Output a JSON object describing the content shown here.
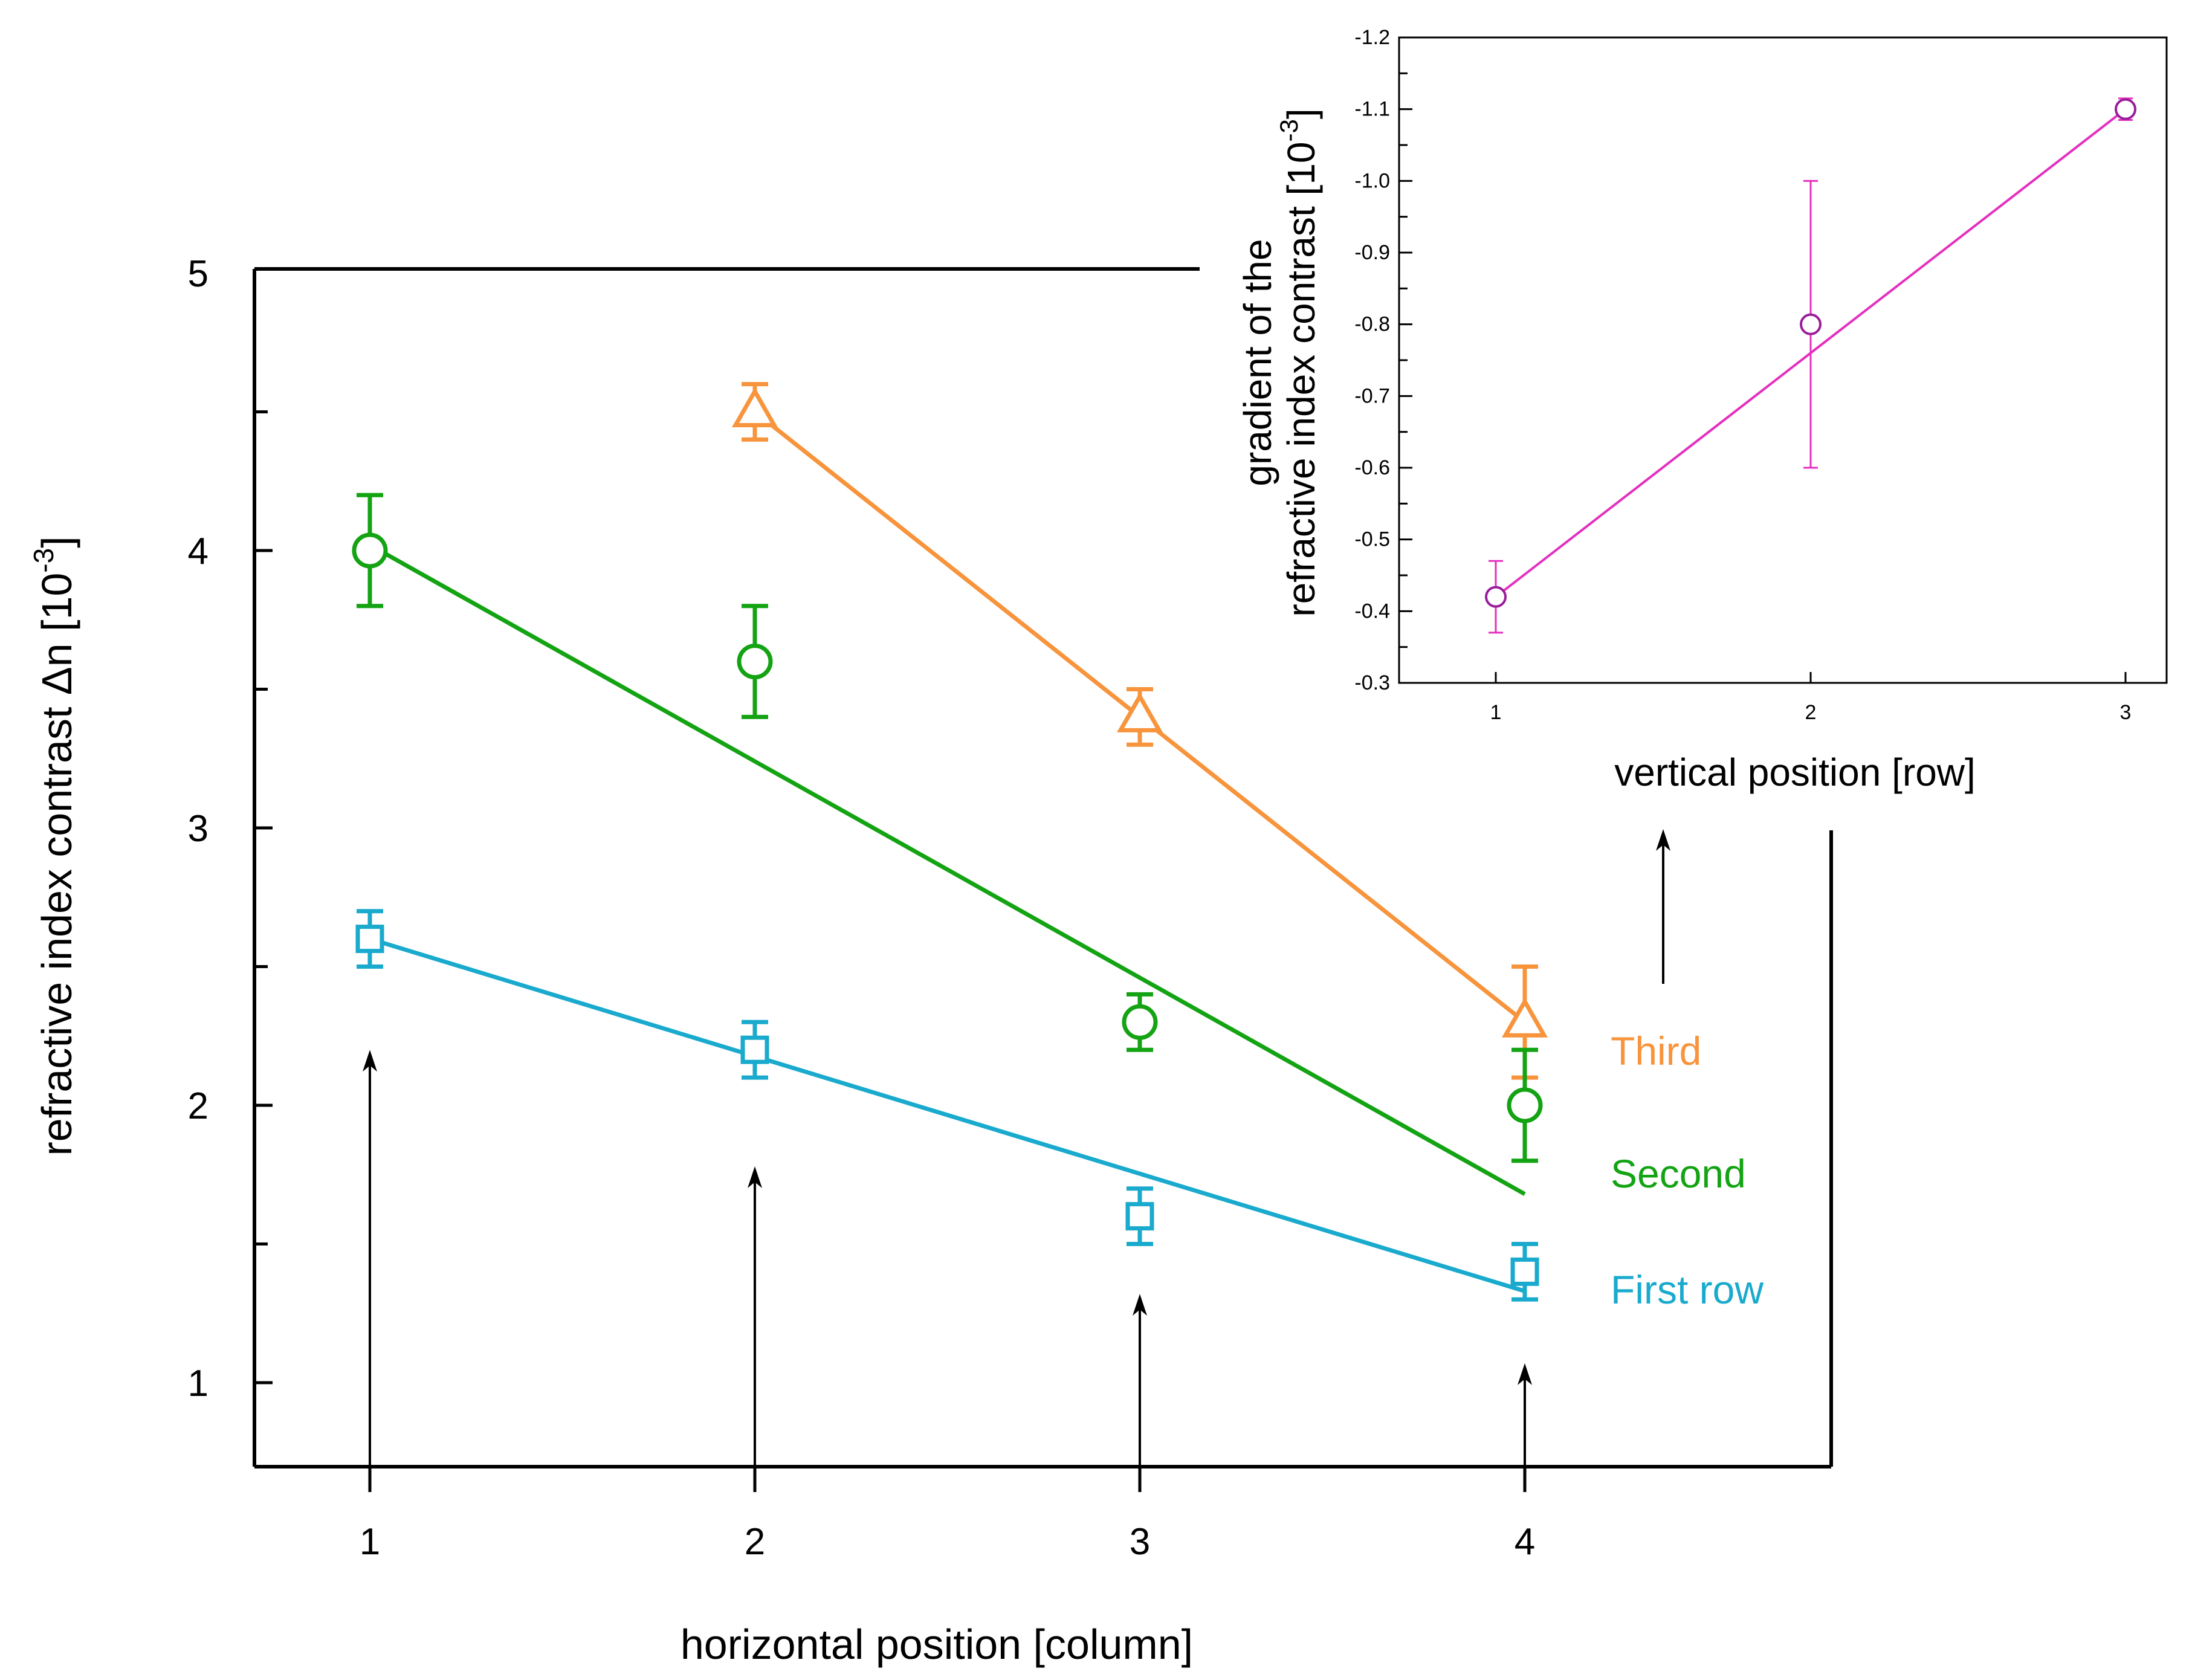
{
  "colors": {
    "third": "#F7943C",
    "second": "#13A313",
    "first": "#19AACD",
    "inset": "#E42FBF",
    "inset_marker": "#9A1C9A",
    "axis": "#000000"
  },
  "chart_data": [
    {
      "type": "scatter",
      "title": "",
      "xlabel": "horizontal position [column]",
      "ylabel_main": "refractive index contrast Δn [10",
      "ylabel_sup": "-3",
      "ylabel_end": "]",
      "xlim": [
        0.7,
        4.8
      ],
      "ylim": [
        0.7,
        5.0
      ],
      "xticks": [
        "1",
        "2",
        "3",
        "4"
      ],
      "yticks": [
        "1",
        "2",
        "3",
        "4",
        "5"
      ],
      "series": [
        {
          "name": "Third",
          "color_key": "third",
          "marker": "triangle",
          "x": [
            2,
            3,
            4
          ],
          "y": [
            4.5,
            3.4,
            2.3
          ],
          "err": [
            0.1,
            0.1,
            0.2
          ],
          "fit": {
            "x": [
              2,
              4
            ],
            "y": [
              4.5,
              2.3
            ]
          }
        },
        {
          "name": "Second",
          "color_key": "second",
          "marker": "circle",
          "x": [
            1,
            2,
            3,
            4
          ],
          "y": [
            4.0,
            3.6,
            2.3,
            2.0
          ],
          "err": [
            0.2,
            0.2,
            0.1,
            0.2
          ],
          "fit": {
            "x": [
              1,
              4
            ],
            "y": [
              4.02,
              1.68
            ]
          }
        },
        {
          "name": "First row",
          "color_key": "first",
          "marker": "square",
          "x": [
            1,
            2,
            3,
            4
          ],
          "y": [
            2.6,
            2.2,
            1.6,
            1.4
          ],
          "err": [
            0.1,
            0.1,
            0.1,
            0.1
          ],
          "fit": {
            "x": [
              1,
              4
            ],
            "y": [
              2.6,
              1.33
            ]
          }
        }
      ],
      "legend": [
        "Third",
        "Second",
        "First row"
      ],
      "arrows": [
        {
          "x": 1,
          "from": 0.7,
          "to": 2.2
        },
        {
          "x": 2,
          "from": 0.7,
          "to": 1.78
        },
        {
          "x": 3,
          "from": 0.7,
          "to": 1.32
        },
        {
          "x": 4,
          "from": 0.7,
          "to": 1.07
        }
      ]
    },
    {
      "type": "scatter",
      "title": "",
      "xlabel": "vertical position [row]",
      "ylabel_line1": "gradient of the",
      "ylabel_line2_main": "refractive index contrast [10",
      "ylabel_sup": "-3",
      "ylabel_end": "]",
      "xlim": [
        0.7,
        3.2
      ],
      "ylim": [
        -0.3,
        -1.2
      ],
      "xticks": [
        "1",
        "2",
        "3"
      ],
      "yticks": [
        "-0.3",
        "-0.4",
        "-0.5",
        "-0.6",
        "-0.7",
        "-0.8",
        "-0.9",
        "-1.0",
        "-1.1",
        "-1.2"
      ],
      "series": [
        {
          "name": "gradient",
          "color_key": "inset",
          "marker": "circle",
          "x": [
            1,
            2,
            3
          ],
          "y": [
            -0.42,
            -0.8,
            -1.1
          ],
          "err": [
            0.05,
            0.2,
            0.015
          ],
          "fit": {
            "x": [
              1,
              3
            ],
            "y": [
              -0.42,
              -1.1
            ]
          }
        }
      ]
    }
  ]
}
